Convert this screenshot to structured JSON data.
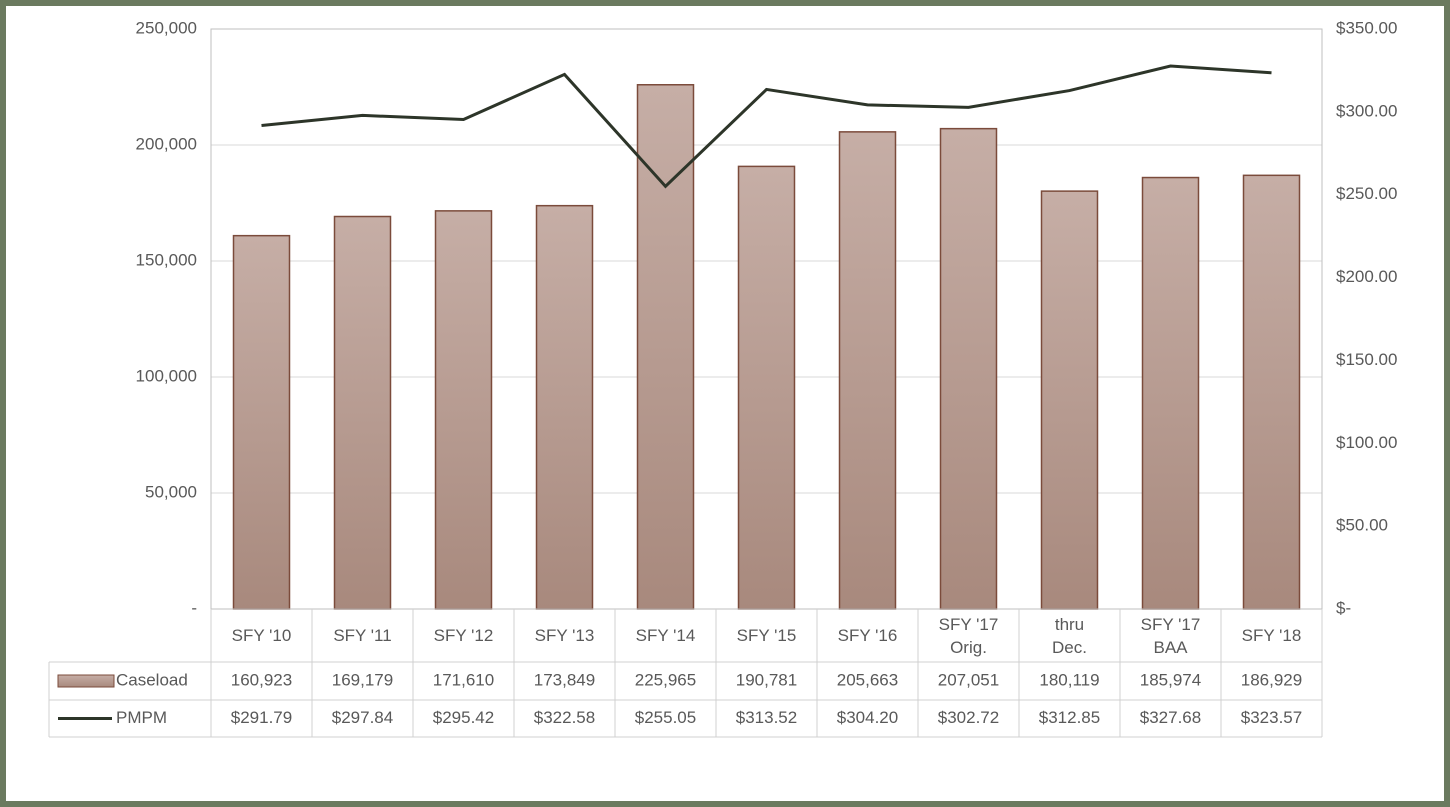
{
  "chart_data": {
    "type": "bar_line",
    "categories": [
      "SFY '10",
      "SFY '11",
      "SFY '12",
      "SFY '13",
      "SFY '14",
      "SFY '15",
      "SFY '16",
      "SFY '17 Orig.",
      "thru Dec.",
      "SFY '17 BAA",
      "SFY '18"
    ],
    "series": [
      {
        "name": "Caseload",
        "type": "bar",
        "color": "#b89c92",
        "values": [
          160923,
          169179,
          171610,
          173849,
          225965,
          190781,
          205663,
          207051,
          180119,
          185974,
          186929
        ],
        "value_labels": [
          "160,923",
          "169,179",
          "171,610",
          "173,849",
          "225,965",
          "190,781",
          "205,663",
          "207,051",
          "180,119",
          "185,974",
          "186,929"
        ]
      },
      {
        "name": "PMPM",
        "type": "line",
        "axis": "y2",
        "color": "#2d3529",
        "values": [
          291.79,
          297.84,
          295.42,
          322.58,
          255.05,
          313.52,
          304.2,
          302.72,
          312.85,
          327.68,
          323.57
        ],
        "value_labels": [
          "$291.79",
          "$297.84",
          "$295.42",
          "$322.58",
          "$255.05",
          "$313.52",
          "$304.20",
          "$302.72",
          "$312.85",
          "$327.68",
          "$323.57"
        ]
      }
    ],
    "ylim": [
      0,
      250000
    ],
    "yticks": [
      {
        "value": 0,
        "label": "-"
      },
      {
        "value": 50000,
        "label": "50,000"
      },
      {
        "value": 100000,
        "label": "100,000"
      },
      {
        "value": 150000,
        "label": "150,000"
      },
      {
        "value": 200000,
        "label": "200,000"
      },
      {
        "value": 250000,
        "label": "250,000"
      }
    ],
    "y2lim": [
      0,
      350
    ],
    "y2ticks": [
      {
        "value": 0,
        "label": "$-"
      },
      {
        "value": 50,
        "label": "$50.00"
      },
      {
        "value": 100,
        "label": "$100.00"
      },
      {
        "value": 150,
        "label": "$150.00"
      },
      {
        "value": 200,
        "label": "$200.00"
      },
      {
        "value": 250,
        "label": "$250.00"
      },
      {
        "value": 300,
        "label": "$300.00"
      },
      {
        "value": 350,
        "label": "$350.00"
      }
    ],
    "grid": true
  }
}
